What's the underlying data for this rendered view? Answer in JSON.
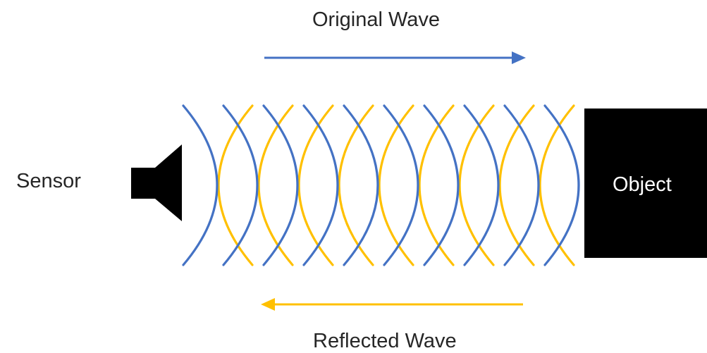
{
  "labels": {
    "original_wave": "Original Wave",
    "reflected_wave": "Reflected Wave",
    "sensor": "Sensor",
    "object": "Object"
  },
  "colors": {
    "original": "#4472c4",
    "reflected": "#ffc000",
    "solid": "#000000"
  },
  "waves": {
    "original_count": 10,
    "reflected_count": 9
  }
}
